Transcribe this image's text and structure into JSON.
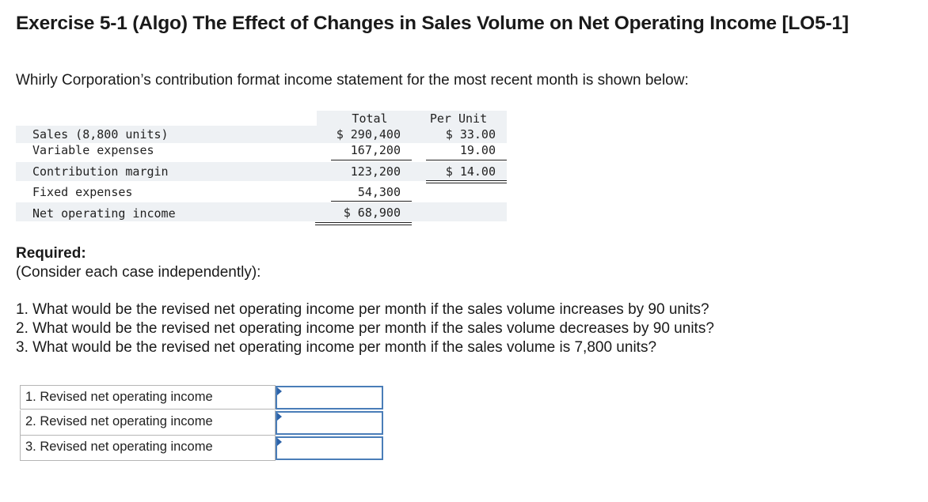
{
  "title": "Exercise 5-1 (Algo) The Effect of Changes in Sales Volume on Net Operating Income [LO5-1]",
  "intro": "Whirly Corporation’s contribution format income statement for the most recent month is shown below:",
  "statement": {
    "col_total": "Total",
    "col_per_unit": "Per Unit",
    "rows": [
      {
        "label": "Sales (8,800 units)",
        "total": "$ 290,400",
        "per_unit": "$ 33.00"
      },
      {
        "label": "Variable expenses",
        "total": "167,200",
        "per_unit": "19.00"
      },
      {
        "label": "Contribution margin",
        "total": "123,200",
        "per_unit": "$ 14.00"
      },
      {
        "label": "Fixed expenses",
        "total": "54,300",
        "per_unit": ""
      },
      {
        "label": "Net operating income",
        "total": "$ 68,900",
        "per_unit": ""
      }
    ]
  },
  "required": {
    "heading": "Required:",
    "note": "(Consider each case independently):",
    "questions": [
      "1. What would be the revised net operating income per month if the sales volume increases by 90 units?",
      "2. What would be the revised net operating income per month if the sales volume decreases by 90 units?",
      "3. What would be the revised net operating income per month if the sales volume is 7,800 units?"
    ]
  },
  "answers": [
    {
      "label": "1. Revised net operating income",
      "value": ""
    },
    {
      "label": "2. Revised net operating income",
      "value": ""
    },
    {
      "label": "3. Revised net operating income",
      "value": ""
    }
  ]
}
